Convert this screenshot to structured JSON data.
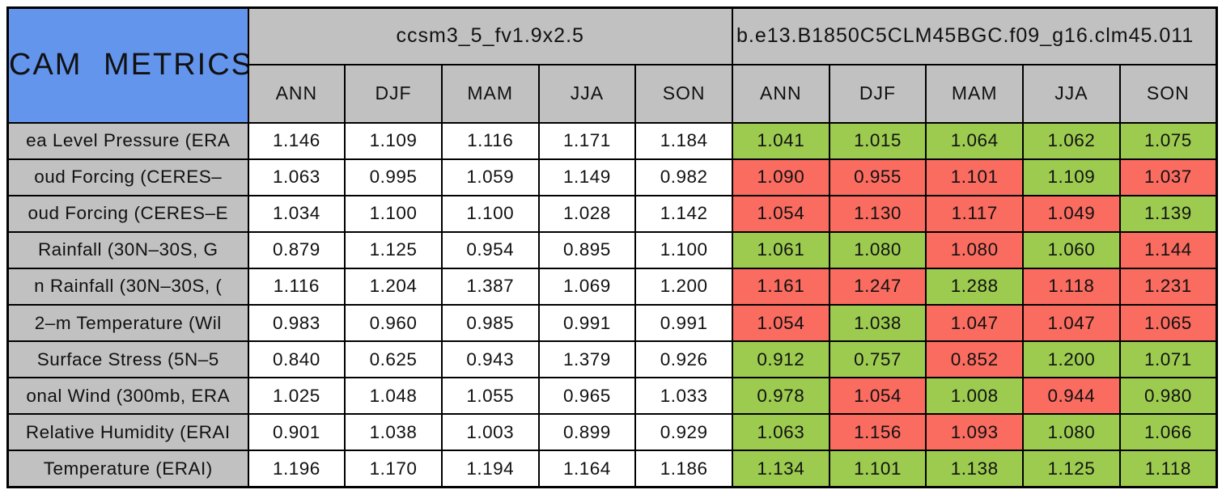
{
  "colors": {
    "title_blue": "#6495ED",
    "header_gray": "#C1C1C1",
    "green": "#9CCB50",
    "red": "#FA6B60",
    "white": "#FFFFFF",
    "border_black": "#000000"
  },
  "chart_data": {
    "type": "table",
    "title": "CAM METRICS",
    "col_groups": [
      {
        "label": "ccsm3_5_fv1.9x2.5",
        "columns": [
          "ANN",
          "DJF",
          "MAM",
          "JJA",
          "SON"
        ]
      },
      {
        "label": "b.e13.B1850C5CLM45BGC.f09_g16.clm45.011",
        "columns": [
          "ANN",
          "DJF",
          "MAM",
          "JJA",
          "SON"
        ]
      }
    ],
    "rows": [
      {
        "label": "ea Level Pressure (ERA",
        "group1_values": [
          "1.146",
          "1.109",
          "1.116",
          "1.171",
          "1.184"
        ],
        "group2_values": [
          "1.041",
          "1.015",
          "1.064",
          "1.062",
          "1.075"
        ],
        "group2_colors": [
          "green",
          "green",
          "green",
          "green",
          "green"
        ]
      },
      {
        "label": "oud Forcing (CERES–",
        "group1_values": [
          "1.063",
          "0.995",
          "1.059",
          "1.149",
          "0.982"
        ],
        "group2_values": [
          "1.090",
          "0.955",
          "1.101",
          "1.109",
          "1.037"
        ],
        "group2_colors": [
          "red",
          "red",
          "red",
          "green",
          "red"
        ]
      },
      {
        "label": "oud Forcing (CERES–E",
        "group1_values": [
          "1.034",
          "1.100",
          "1.100",
          "1.028",
          "1.142"
        ],
        "group2_values": [
          "1.054",
          "1.130",
          "1.117",
          "1.049",
          "1.139"
        ],
        "group2_colors": [
          "red",
          "red",
          "red",
          "red",
          "green"
        ]
      },
      {
        "label": "Rainfall (30N–30S, G",
        "group1_values": [
          "0.879",
          "1.125",
          "0.954",
          "0.895",
          "1.100"
        ],
        "group2_values": [
          "1.061",
          "1.080",
          "1.080",
          "1.060",
          "1.144"
        ],
        "group2_colors": [
          "green",
          "green",
          "red",
          "green",
          "red"
        ]
      },
      {
        "label": "n Rainfall (30N–30S, (",
        "group1_values": [
          "1.116",
          "1.204",
          "1.387",
          "1.069",
          "1.200"
        ],
        "group2_values": [
          "1.161",
          "1.247",
          "1.288",
          "1.118",
          "1.231"
        ],
        "group2_colors": [
          "red",
          "red",
          "green",
          "red",
          "red"
        ]
      },
      {
        "label": "2–m Temperature (Wil",
        "group1_values": [
          "0.983",
          "0.960",
          "0.985",
          "0.991",
          "0.991"
        ],
        "group2_values": [
          "1.054",
          "1.038",
          "1.047",
          "1.047",
          "1.065"
        ],
        "group2_colors": [
          "red",
          "green",
          "red",
          "red",
          "red"
        ]
      },
      {
        "label": "Surface Stress (5N–5",
        "group1_values": [
          "0.840",
          "0.625",
          "0.943",
          "1.379",
          "0.926"
        ],
        "group2_values": [
          "0.912",
          "0.757",
          "0.852",
          "1.200",
          "1.071"
        ],
        "group2_colors": [
          "green",
          "green",
          "red",
          "green",
          "green"
        ]
      },
      {
        "label": "onal Wind (300mb, ERA",
        "group1_values": [
          "1.025",
          "1.048",
          "1.055",
          "0.965",
          "1.033"
        ],
        "group2_values": [
          "0.978",
          "1.054",
          "1.008",
          "0.944",
          "0.980"
        ],
        "group2_colors": [
          "green",
          "red",
          "green",
          "red",
          "green"
        ]
      },
      {
        "label": "Relative Humidity (ERAI",
        "group1_values": [
          "0.901",
          "1.038",
          "1.003",
          "0.899",
          "0.929"
        ],
        "group2_values": [
          "1.063",
          "1.156",
          "1.093",
          "1.080",
          "1.066"
        ],
        "group2_colors": [
          "green",
          "red",
          "red",
          "green",
          "green"
        ]
      },
      {
        "label": "Temperature (ERAI)",
        "group1_values": [
          "1.196",
          "1.170",
          "1.194",
          "1.164",
          "1.186"
        ],
        "group2_values": [
          "1.134",
          "1.101",
          "1.138",
          "1.125",
          "1.118"
        ],
        "group2_colors": [
          "green",
          "green",
          "green",
          "green",
          "green"
        ]
      }
    ]
  }
}
